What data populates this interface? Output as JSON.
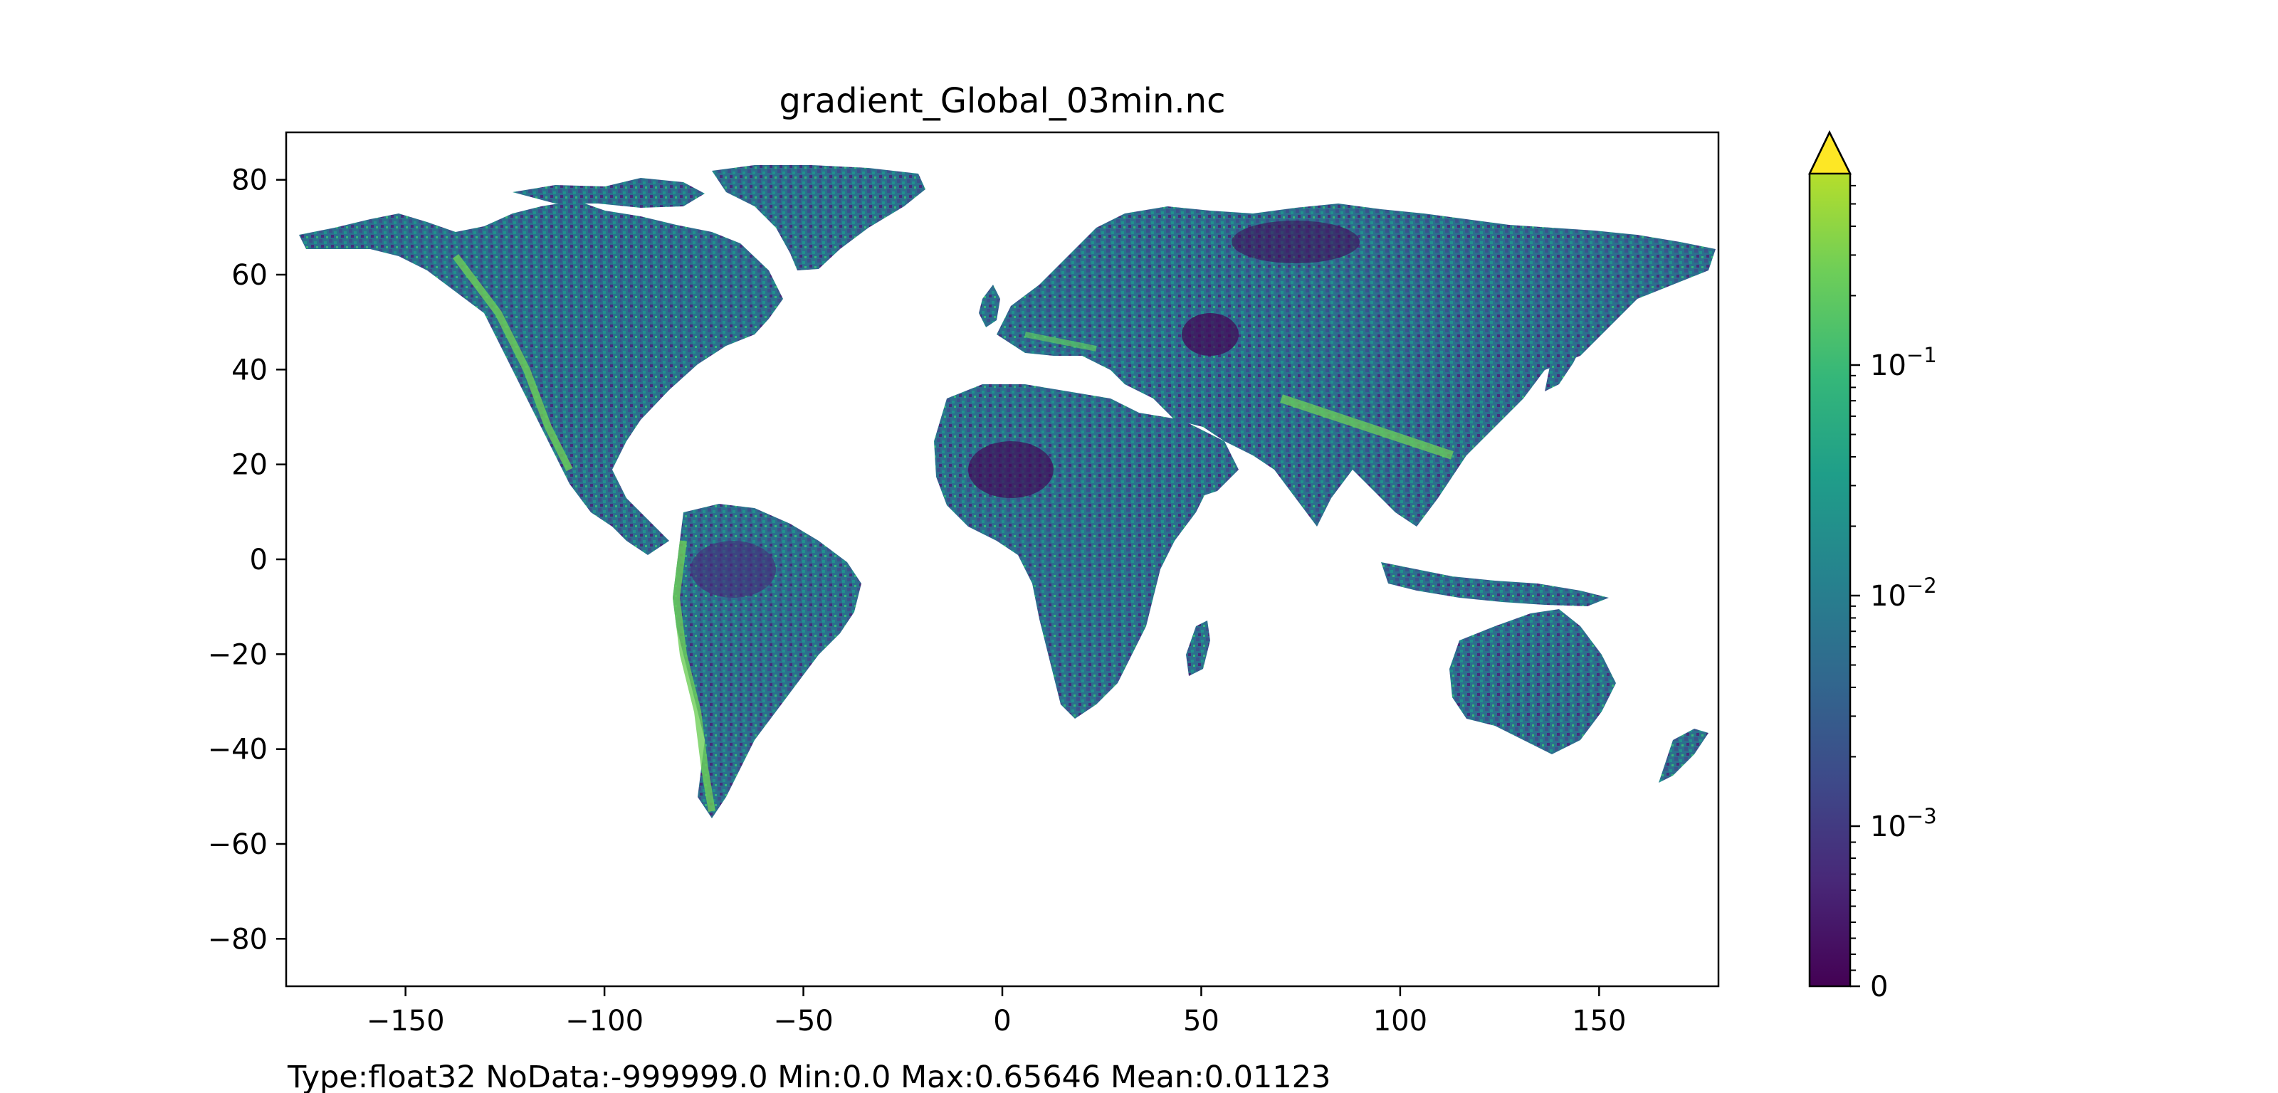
{
  "chart_data": {
    "type": "heatmap",
    "title": "gradient_Global_03min.nc",
    "xlabel": "",
    "ylabel": "",
    "xlim": [
      -180,
      180
    ],
    "ylim": [
      -90,
      90
    ],
    "x_ticks": [
      -150,
      -100,
      -50,
      0,
      50,
      100,
      150
    ],
    "x_tick_labels": [
      "−150",
      "−100",
      "−50",
      "0",
      "50",
      "100",
      "150"
    ],
    "y_ticks": [
      80,
      60,
      40,
      20,
      0,
      -20,
      -40,
      -60,
      -80
    ],
    "y_tick_labels": [
      "80",
      "60",
      "40",
      "20",
      "0",
      "−20",
      "−40",
      "−60",
      "−80"
    ],
    "colorbar": {
      "colormap": "viridis",
      "scale": "symlog",
      "extend": "max",
      "ticks": [
        0,
        0.001,
        0.01,
        0.1
      ],
      "tick_labels": [
        {
          "base": "0",
          "exp": ""
        },
        {
          "base": "10",
          "exp": "−3"
        },
        {
          "base": "10",
          "exp": "−2"
        },
        {
          "base": "10",
          "exp": "−1"
        }
      ],
      "range": [
        0,
        0.65646
      ]
    },
    "colors": {
      "low": "#440154",
      "mid_low": "#3b528b",
      "mid": "#21918c",
      "mid_high": "#5ec962",
      "high": "#fde725",
      "nodata": "#ffffff"
    },
    "footer": "Type:float32  NoData:-999999.0  Min:0.0  Max:0.65646  Mean:0.01123"
  }
}
